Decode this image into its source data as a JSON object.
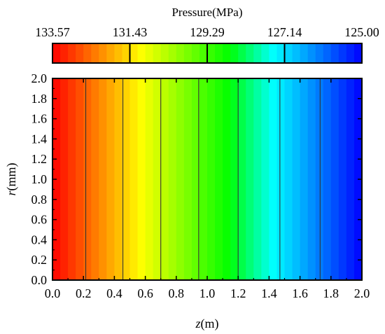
{
  "chart_data": {
    "type": "heatmap",
    "colorbar": {
      "title": "Pressure(MPa)",
      "tick_labels": [
        "133.57",
        "131.43",
        "129.29",
        "127.14",
        "125.00"
      ],
      "range": [
        133.57,
        125.0
      ]
    },
    "xlabel": {
      "italic": "z",
      "rest": "(m)"
    },
    "ylabel": {
      "italic": "r",
      "rest": "(mm)"
    },
    "xlim": [
      0.0,
      2.0
    ],
    "ylim": [
      0.0,
      2.0
    ],
    "x_ticks": [
      "0.0",
      "0.2",
      "0.4",
      "0.6",
      "0.8",
      "1.0",
      "1.2",
      "1.4",
      "1.6",
      "1.8",
      "2.0"
    ],
    "y_ticks": [
      "0.0",
      "0.2",
      "0.4",
      "0.6",
      "0.8",
      "1.0",
      "1.2",
      "1.4",
      "1.6",
      "1.8",
      "2.0"
    ],
    "contour_lines_z": [
      0.215,
      0.455,
      0.7,
      0.945,
      1.2,
      1.47,
      1.73
    ],
    "colormap": [
      "#ff0000",
      "#ff8000",
      "#ffff00",
      "#80ff00",
      "#00ff00",
      "#00ffff",
      "#0080ff",
      "#0000ff"
    ],
    "note_color_steps": 40
  }
}
